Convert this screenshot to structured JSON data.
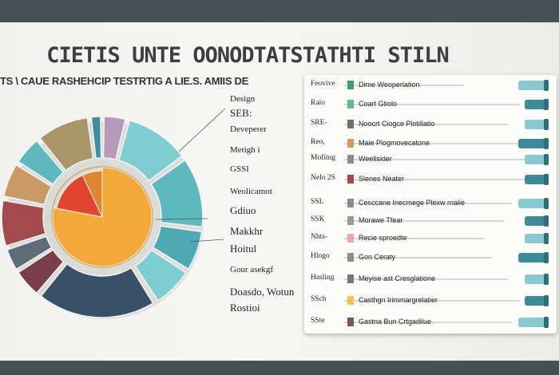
{
  "chart_data": {
    "type": "pie",
    "title": "CIETIS UNTE OONODTATSTATHTI STILN",
    "subtitle": "TS \\ CAUE RASHEHCIP TESTRTIG A LIE.S. AMIIS DE",
    "colors": {
      "teal": "#5fb8be",
      "teal_light": "#7ecdd0",
      "khaki": "#a8956a",
      "mauve": "#b59ab9",
      "red": "#e2452f",
      "orange": "#f2a83a",
      "tan": "#c89a66",
      "maroon": "#a34a4e",
      "slate": "#5f6b77",
      "plum": "#7a3e4b",
      "navy": "#3a5068",
      "grey": "#8d8c8c"
    },
    "outer_slices": [
      {
        "color": "#7ecdd0",
        "value": 11
      },
      {
        "color": "#5fb8be",
        "value": 12
      },
      {
        "color": "#4ea9b2",
        "value": 7
      },
      {
        "color": "#7ecdd0",
        "value": 7
      },
      {
        "color": "#3a5068",
        "value": 20
      },
      {
        "color": "#7a3e4b",
        "value": 5
      },
      {
        "color": "#5f6b77",
        "value": 4
      },
      {
        "color": "#a34a4e",
        "value": 8
      },
      {
        "color": "#c89a66",
        "value": 6
      },
      {
        "color": "#5fb8be",
        "value": 5
      },
      {
        "color": "#a8956a",
        "value": 9
      },
      {
        "color": "#3f8ea0",
        "value": 2
      },
      {
        "color": "#b59ab9",
        "value": 4
      }
    ],
    "inner_slices": [
      {
        "color": "#f2a83a",
        "value": 78
      },
      {
        "color": "#e2452f",
        "value": 15
      },
      {
        "color": "#e0842f",
        "value": 7
      }
    ],
    "left_labels": [
      "Design",
      "SEB:",
      "Deveperer",
      "Metigh i",
      "GSSI",
      "Weolicamot",
      "Gdiuo",
      "Makkhr",
      "Hoitul",
      "Gour asekgf",
      "Doasdo, Wotun",
      "Rostioi"
    ],
    "legend": [
      {
        "code": "Feovive",
        "color": "#3e9e6a",
        "text": "Dime Weoperlation"
      },
      {
        "code": "Raio",
        "color": "#5cbd86",
        "text": "Coart Gtiolo"
      },
      {
        "code": "SRE-",
        "color": "#7a6a62",
        "text": "Noocrt Ciogce Plotillatio"
      },
      {
        "code": "Reo,",
        "color": "#d19c62",
        "text": "Maie Plogmovecatone"
      },
      {
        "code": "Mofitng",
        "color": "#8d8c8c",
        "text": "Weelisider"
      },
      {
        "code": "Nelo 2S",
        "color": "#a34a4e",
        "text": "Slenes Neater"
      },
      {
        "code": "SSL",
        "color": "#8d8c8c",
        "text": "Cesccane Inecmege Plexw rnalie"
      },
      {
        "code": "SSK",
        "color": "#9a9897",
        "text": "Morawe Tfear"
      },
      {
        "code": "Nhts-",
        "color": "#f0a7aa",
        "text": "Recie sproedte"
      },
      {
        "code": "Hlogo",
        "color": "#8d8c8c",
        "text": "Gon Ceraty"
      },
      {
        "code": "Hasling",
        "color": "#7a7877",
        "text": "Meyise ast Cresglatione"
      },
      {
        "code": "SSch",
        "color": "#f2c552",
        "text": "Casthgn Irimmargrelatier"
      },
      {
        "code": "SSte",
        "color": "#7a5a4f",
        "text": "Gastna Bun Crtgadilue"
      }
    ]
  }
}
